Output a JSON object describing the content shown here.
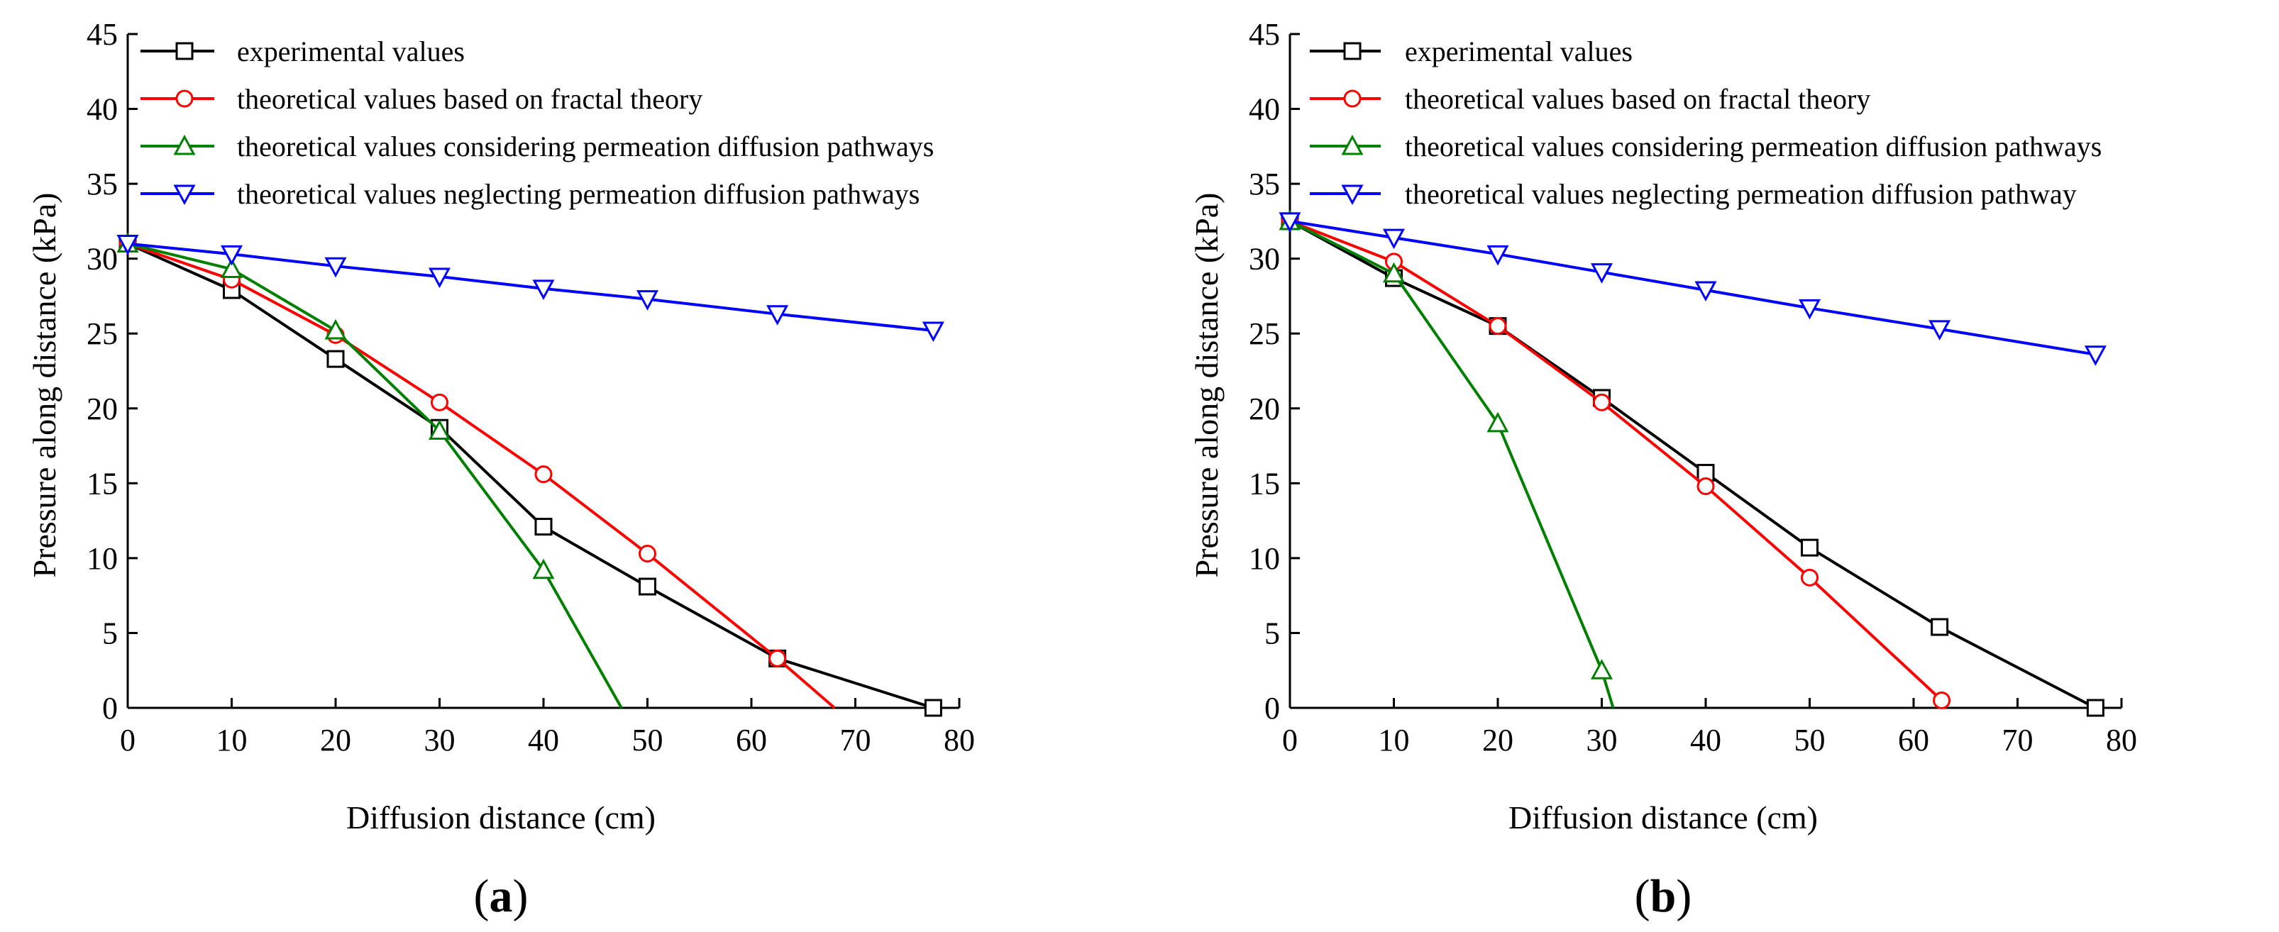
{
  "figure": {
    "panels": [
      "a",
      "b"
    ]
  },
  "chart_data": [
    {
      "panel": "a",
      "panel_label": {
        "open": "(",
        "letter": "a",
        "close": ")"
      },
      "type": "line",
      "title": "",
      "xlabel": "Diffusion distance (cm)",
      "ylabel": "Pressure along distance (kPa)",
      "xlim": [
        0,
        80
      ],
      "ylim": [
        0,
        45
      ],
      "xticks": [
        "0",
        "10",
        "20",
        "30",
        "40",
        "50",
        "60",
        "70",
        "80"
      ],
      "yticks": [
        "0",
        "5",
        "10",
        "15",
        "20",
        "25",
        "30",
        "35",
        "40",
        "45"
      ],
      "legend_position": "top-left",
      "series": [
        {
          "name": "experimental values",
          "color": "#000000",
          "marker": "square",
          "points": [
            [
              0,
              31.0
            ],
            [
              10,
              27.9
            ],
            [
              20,
              23.3
            ],
            [
              30,
              18.7
            ],
            [
              40,
              12.1
            ],
            [
              50,
              8.1
            ],
            [
              62.5,
              3.3
            ],
            [
              77.5,
              0.0
            ]
          ]
        },
        {
          "name": "theoretical values based on fractal theory",
          "color": "#ff0000",
          "marker": "circle",
          "points": [
            [
              0,
              31.0
            ],
            [
              10,
              28.6
            ],
            [
              20,
              24.9
            ],
            [
              30,
              20.4
            ],
            [
              40,
              15.6
            ],
            [
              50,
              10.3
            ],
            [
              62.5,
              3.3
            ],
            [
              68,
              0.0
            ]
          ],
          "marker_indices": [
            0,
            1,
            2,
            3,
            4,
            5,
            6
          ]
        },
        {
          "name": "theoretical values considering permeation diffusion pathways",
          "color": "#008000",
          "marker": "triangle-up",
          "points": [
            [
              0,
              31.0
            ],
            [
              10,
              29.3
            ],
            [
              20,
              25.2
            ],
            [
              30,
              18.5
            ],
            [
              40,
              9.2
            ],
            [
              47.5,
              0.0
            ]
          ],
          "marker_indices": [
            0,
            1,
            2,
            3,
            4
          ]
        },
        {
          "name": "theoretical values neglecting permeation diffusion pathways",
          "color": "#0000ff",
          "marker": "triangle-down",
          "points": [
            [
              0,
              31.0
            ],
            [
              10,
              30.3
            ],
            [
              20,
              29.5
            ],
            [
              30,
              28.8
            ],
            [
              40,
              28.0
            ],
            [
              50,
              27.3
            ],
            [
              62.5,
              26.3
            ],
            [
              77.5,
              25.2
            ]
          ]
        }
      ]
    },
    {
      "panel": "b",
      "panel_label": {
        "open": "(",
        "letter": "b",
        "close": ")"
      },
      "type": "line",
      "title": "",
      "xlabel": "Diffusion distance (cm)",
      "ylabel": "Pressure along distance (kPa)",
      "xlim": [
        0,
        80
      ],
      "ylim": [
        0,
        45
      ],
      "xticks": [
        "0",
        "10",
        "20",
        "30",
        "40",
        "50",
        "60",
        "70",
        "80"
      ],
      "yticks": [
        "0",
        "5",
        "10",
        "15",
        "20",
        "25",
        "30",
        "35",
        "40",
        "45"
      ],
      "legend_position": "top-left",
      "series": [
        {
          "name": "experimental values",
          "color": "#000000",
          "marker": "square",
          "points": [
            [
              0,
              32.5
            ],
            [
              10,
              28.7
            ],
            [
              20,
              25.5
            ],
            [
              30,
              20.7
            ],
            [
              40,
              15.7
            ],
            [
              50,
              10.7
            ],
            [
              62.5,
              5.4
            ],
            [
              77.5,
              0.0
            ]
          ]
        },
        {
          "name": "theoretical values based on fractal theory",
          "color": "#ff0000",
          "marker": "circle",
          "points": [
            [
              0,
              32.5
            ],
            [
              10,
              29.8
            ],
            [
              20,
              25.5
            ],
            [
              30,
              20.4
            ],
            [
              40,
              14.8
            ],
            [
              50,
              8.7
            ],
            [
              62.7,
              0.5
            ]
          ]
        },
        {
          "name": "theoretical values considering permeation diffusion pathways",
          "color": "#008000",
          "marker": "triangle-up",
          "points": [
            [
              0,
              32.5
            ],
            [
              10,
              29.0
            ],
            [
              20,
              19.0
            ],
            [
              30,
              2.5
            ],
            [
              31.1,
              0.0
            ]
          ],
          "marker_indices": [
            0,
            1,
            2,
            3
          ]
        },
        {
          "name": "theoretical values neglecting permeation diffusion pathway",
          "color": "#0000ff",
          "marker": "triangle-down",
          "points": [
            [
              0,
              32.5
            ],
            [
              10,
              31.4
            ],
            [
              20,
              30.3
            ],
            [
              30,
              29.1
            ],
            [
              40,
              27.9
            ],
            [
              50,
              26.7
            ],
            [
              62.5,
              25.3
            ],
            [
              77.5,
              23.6
            ]
          ]
        }
      ]
    }
  ]
}
